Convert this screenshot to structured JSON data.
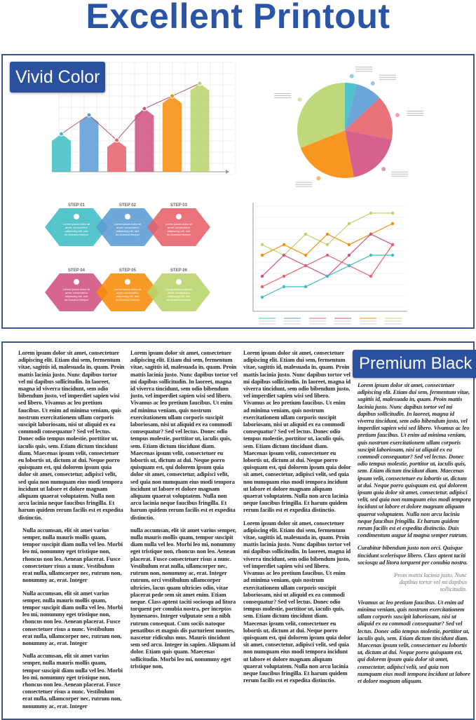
{
  "title": "Excellent Printout",
  "badges": {
    "vivid": "Vivid Color",
    "premium": "Premium Black"
  },
  "colors": {
    "brand": "#2a55a6",
    "teal": "#3fbcc4",
    "blue": "#5b9bd5",
    "red": "#e8606a",
    "pink": "#d0507f",
    "orange": "#f88b0a",
    "green": "#b8d46a"
  },
  "bar_infographic": {
    "values": [
      3,
      4.5,
      2.5,
      5,
      6,
      7
    ]
  },
  "pie_infographic": {
    "shares": [
      4,
      9,
      15,
      19,
      22,
      31
    ]
  },
  "steps": [
    {
      "label": "STEP 01",
      "icon": "target-icon",
      "text": "Lorem ipsum dolor sit amet, consectetur adipiscing elit, sed do eiusmod tempor"
    },
    {
      "label": "STEP 02",
      "icon": "document-icon",
      "text": "Lorem ipsum dolor sit amet, consectetur adipiscing elit, sed do eiusmod tempor"
    },
    {
      "label": "STEP 03",
      "icon": "user-icon",
      "text": "Lorem ipsum dolor sit amet, consectetur adipiscing elit, sed do eiusmod tempor"
    },
    {
      "label": "STEP 04",
      "icon": "at-icon",
      "text": "Lorem ipsum dolor sit amet, consectetur adipiscing elit, sed do eiusmod tempor"
    },
    {
      "label": "STEP 05",
      "icon": "globe-icon",
      "text": "Lorem ipsum dolor sit amet, consectetur adipiscing elit, sed do eiusmod tempor"
    },
    {
      "label": "STEP 06",
      "icon": "pin-icon",
      "text": "Lorem ipsum dolor sit amet, consectetur adipiscing elit, sed do eiusmod tempor"
    }
  ],
  "line_infographic": {
    "series": [
      [
        6,
        5,
        7,
        6,
        8,
        9,
        9
      ],
      [
        5,
        6,
        5,
        7,
        6,
        7,
        8
      ],
      [
        3,
        5,
        4,
        3,
        5,
        7,
        6
      ],
      [
        2,
        3,
        4,
        5,
        4,
        3,
        6
      ],
      [
        1,
        2,
        2,
        3,
        4,
        5,
        5
      ]
    ]
  },
  "text": {
    "lorem": "Lorem ipsum dolor sit amet, consectetuer adipiscing elit. Etiam dui sem, fermentum vitae, sagittis id, malesuada in, quam. Proin mattis lacinia justo. Nunc dapibus tortor vel mi dapibus sollicitudin. In laoreet, magna id viverra tincidunt, sem odio bibendum justo, vel imperdiet sapien wisi sed libero. Vivamus ac leo pretium faucibus. Ut enim ad minima veniam, quis nostrum exercitationem ullam corporis suscipit laboriosam, nisi ut aliquid ex ea commodi consequatur? Sed vel lectus. Donec odio tempus molestie, porttitor ut, iaculis quis, sem. Etiam dictum tincidunt diam. Maecenas ipsum velit, consectetuer eu lobortis ut, dictum at dui. Neque porro quisquam est, qui dolorem ipsum quia dolor sit amet, consectetur, adipisci velit, sed quia non numquam eius modi tempora incidunt ut labore et dolore magnam aliquam quaerat voluptatem. Nulla non arcu lacinia neque faucibus fringilla. Et harum quidem rerum facilis est et expedita distinctio.",
    "nulla": "Nulla accumsan, elit sit amet varius semper, nulla mauris mollis quam, tempor suscipit diam nulla vel leo. Morbi leo mi, nonummy eget tristique non, rhoncus non leo. Aenean placerat. Fusce consectetuer risus a nunc. Vestibulum erat nulla, ullamcorper nec, rutrum non, nonummy ac, erat. Integer",
    "nulla_long": "nulla accumsan, elit sit amet varius semper, nulla mauris mollis quam, tempor suscipit diam nulla vel leo. Morbi leo mi, nonummy eget tristique non, rhoncus non leo. Aenean placerat. Fusce consectetuer risus a nunc. Vestibulum erat nulla, ullamcorper nec, rutrum non, nonummy ac, erat. Integer rutrum, orci vestibulum ullamcorper ultricies, lacus quam ultricies odio, vitae placerat pede sem sit amet enim. Etiam neque. Class aptent taciti sociosqu ad litora torquent per conubia nostra, per inceptos hymenaeos. Integer vulputate sem a nibh rutrum consequat. Cum sociis natoque penatibus et magnis dis parturient montes, nascetur ridiculus mus. Mauris tincidunt sem sed arcu. Integer in sapien. Aliquam id dolor. Etiam quis quam. Maecenas sollicitudin. Morbi leo mi, nonummy eget tristique non,",
    "italic1": "Lorem ipsum dolor sit amet, consectetuer adipiscing elit. Etiam dui sem, fermentum vitae, sagittis id, malesuada in, quam. Proin mattis lacinia justo. Nunc dapibus tortor vel mi dapibus sollicitudin. In laoreet, magna id viverra tincidunt, sem odio bibendum justo, vel imperdiet sapien wisi sed libero. Vivamus ac leo pretium faucibus. Ut enim ad minima veniam, quis nostrum exercitationem ullam corporis suscipit laboriosam, nisi ut aliquid ex ea commodi consequatur? Sed vel lectus. Donec odio tempus molestie, porttitor ut, iaculis quis, sem. Etiam dictum tincidunt diam. Maecenas ipsum velit, consectetuer eu lobortis ut, dictum at dui. Neque porro quisquam est, qui dolorem ipsum quia dolor sit amet, consectetur, adipisci velit, sed quia non numquam eius modi tempora incidunt ut labore et dolore magnam aliquam quaerat voluptatem. Nulla non arcu lacinia neque faucibus fringilla. Et harum quidem rerum facilis est et expedita distinctio. Duis condimentum augue id magna semper rutrum.",
    "italic2": "Curabitur bibendum justo non orci. Quisque tincidunt scelerisque libero. Class aptent taciti sociosqu ad litora torquent per conubia nostra.",
    "quote": "Proin mattis lacinia justo. Nunc dapibus tortor vel mi dapibus sollicitudin.",
    "italic3": "Vivamus ac leo pretium faucibus. Ut enim ad minima veniam, quis nostrum exercitationem ullam corporis suscipit laboriosam, nisi ut aliquid ex ea commodi consequatur? Sed vel lectus. Donec odio tempus molestie, porttitor ut, iaculis quis, sem. Etiam dictum tincidunt diam. Maecenas ipsum velit, consectetuer eu lobortis ut, dictum at dui. Neque porro quisquam est, qui dolorem ipsum quia dolor sit amet, consectetur, adipisci velit, sed quia non numquam eius modi tempora incidunt ut labore et dolore magnam aliquam."
  }
}
